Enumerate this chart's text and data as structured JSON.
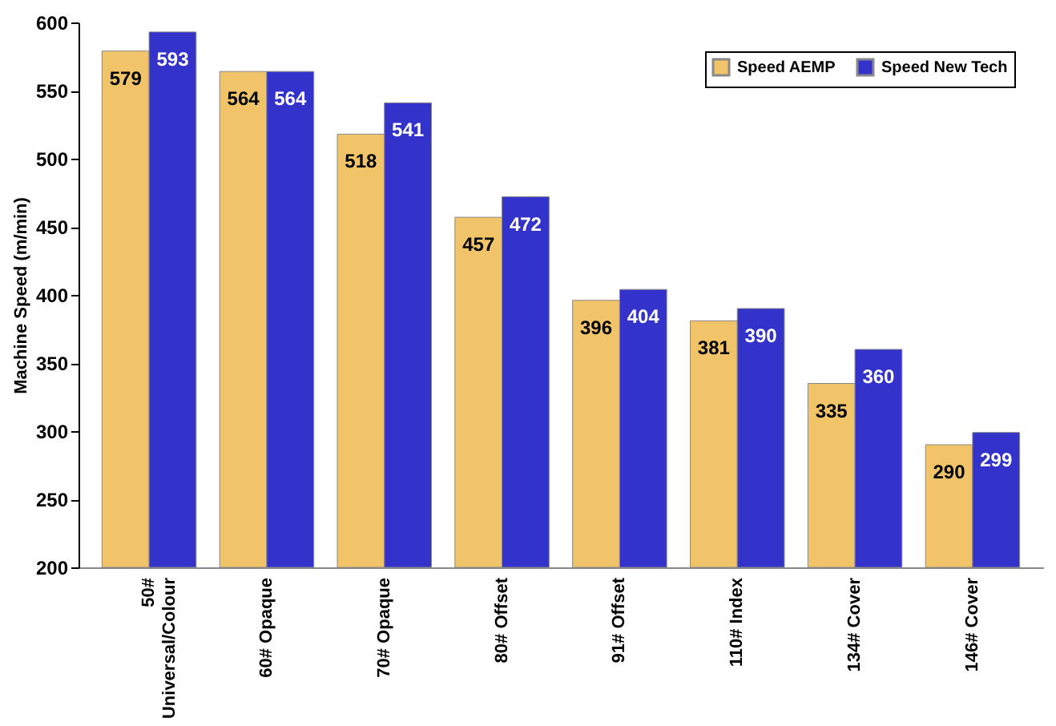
{
  "chart_data": {
    "type": "bar",
    "ylabel": "Machine Speed (m/min)",
    "categories": [
      "50# Universal/Colour",
      "60# Opaque",
      "70# Opaque",
      "80# Offset",
      "91# Offset",
      "110# Index",
      "134# Cover",
      "146# Cover"
    ],
    "series": [
      {
        "name": "Speed AEMP",
        "color": "#f2c46a",
        "values": [
          579,
          564,
          518,
          457,
          396,
          381,
          335,
          290
        ]
      },
      {
        "name": "Speed New Tech",
        "color": "#3333cc",
        "values": [
          593,
          564,
          541,
          472,
          404,
          390,
          360,
          299
        ]
      }
    ],
    "ylim": [
      200,
      600
    ],
    "yticks": [
      200,
      250,
      300,
      350,
      400,
      450,
      500,
      550,
      600
    ],
    "data_labels": true,
    "legend": "top right",
    "grid": false
  }
}
